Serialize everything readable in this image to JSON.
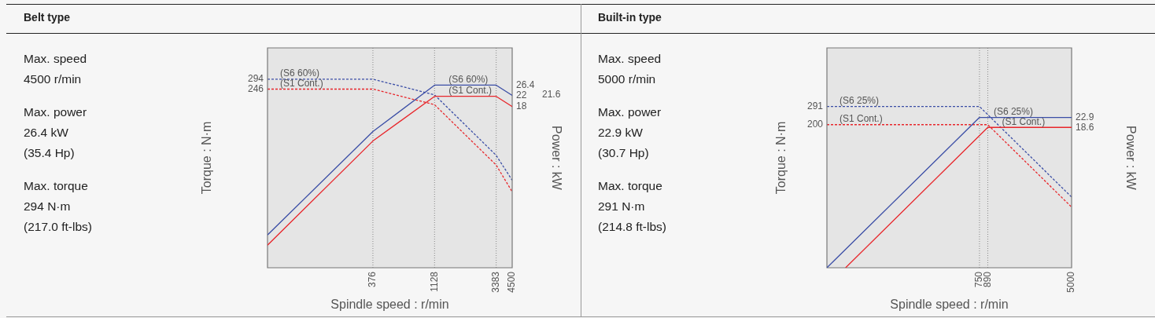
{
  "chart_data": [
    {
      "type": "other",
      "title": "Belt type",
      "annotations": [
        "Max. speed\n4500 r/min",
        "Max. power\n26.4 kW\n(35.4 Hp)",
        "Max. torque\n294 N·m\n(217.0 ft-lbs)"
      ]
    },
    {
      "type": "line",
      "xlabel": "Spindle speed : r/min",
      "ylabel": "Torque : N·m",
      "log": "xy",
      "marker": "none",
      "xlim": [
        57.5,
        4500
      ],
      "xticks": [
        376,
        1128,
        3383,
        4500
      ],
      "ylim": [
        10,
        515
      ],
      "yticks": [
        294,
        246
      ],
      "ref_lines": [
        {
          "axis": "x",
          "value": 376,
          "color": "#888888",
          "line_style": "dotted"
        },
        {
          "axis": "x",
          "value": 1128,
          "color": "#888888",
          "line_style": "dotted"
        },
        {
          "axis": "x",
          "value": 3383,
          "color": "#888888",
          "line_style": "dotted"
        }
      ],
      "series": [
        {
          "name": "(S6 60%)",
          "color": "#3b4ea6",
          "line_style": "dashed",
          "x": [
            57.5,
            376,
            1128,
            3383,
            4500
          ],
          "values": [
            294,
            294,
            222,
            75,
            48
          ]
        },
        {
          "name": "(S1 Cont.)",
          "color": "#e8262b",
          "line_style": "dashed",
          "x": [
            57.5,
            376,
            1128,
            3383,
            4500
          ],
          "values": [
            246,
            246,
            186,
            63,
            39
          ]
        }
      ]
    },
    {
      "type": "line",
      "ylabel": "Power : kW",
      "log": "xy",
      "marker": "none",
      "tick_labels": "y",
      "xlim": [
        57.5,
        4500
      ],
      "ylim": [
        1,
        51.5
      ],
      "yticks": [
        26.4,
        22,
        18
      ],
      "annotations": [
        "21.6"
      ],
      "series": [
        {
          "name": "(S6 60%)",
          "color": "#3b4ea6",
          "line_style": "solid",
          "x": [
            57.5,
            376,
            1128,
            3383,
            4500
          ],
          "values": [
            1.8,
            11.5,
            26.4,
            26.4,
            22
          ]
        },
        {
          "name": "(S1 Cont.)",
          "color": "#e8262b",
          "line_style": "solid",
          "x": [
            57.5,
            376,
            1128,
            3383,
            4500
          ],
          "values": [
            1.5,
            9.7,
            21.6,
            21.6,
            18
          ]
        }
      ]
    },
    {
      "type": "other",
      "title": "Built-in type",
      "annotations": [
        "Max. speed\n5000 r/min",
        "Max. power\n22.9 kW\n(30.7 Hp)",
        "Max. torque\n291 N·m\n(214.8 ft-lbs)"
      ]
    },
    {
      "type": "line",
      "xlabel": "Spindle speed : r/min",
      "ylabel": "Torque : N·m",
      "log": "xy",
      "marker": "none",
      "xlim": [
        32.4,
        5000
      ],
      "xticks": [
        750,
        890,
        5000
      ],
      "ylim": [
        10.4,
        976
      ],
      "yticks": [
        291,
        200
      ],
      "ref_lines": [
        {
          "axis": "x",
          "value": 750,
          "color": "#888888",
          "line_style": "dotted"
        },
        {
          "axis": "x",
          "value": 890,
          "color": "#888888",
          "line_style": "dotted"
        }
      ],
      "series": [
        {
          "name": "(S6 25%)",
          "color": "#3b4ea6",
          "line_style": "dashed",
          "x": [
            32.4,
            750,
            5000
          ],
          "values": [
            291,
            291,
            44.8
          ]
        },
        {
          "name": "(S1 Cont.)",
          "color": "#e8262b",
          "line_style": "dashed",
          "x": [
            32.4,
            890,
            5000
          ],
          "values": [
            200,
            200,
            36.4
          ]
        }
      ]
    },
    {
      "type": "line",
      "ylabel": "Power : kW",
      "log": "xy",
      "marker": "none",
      "tick_labels": "y",
      "xlim": [
        32.4,
        5000
      ],
      "ylim": [
        1,
        97.4
      ],
      "yticks": [
        22.9,
        18.6
      ],
      "series": [
        {
          "name": "(S6 25%)",
          "color": "#3b4ea6",
          "line_style": "solid",
          "x": [
            32.4,
            750,
            5000
          ],
          "values": [
            1,
            22.9,
            22.9
          ]
        },
        {
          "name": "(S1 Cont.)",
          "color": "#e8262b",
          "line_style": "solid",
          "x": [
            47.6,
            890,
            5000
          ],
          "values": [
            1,
            18.6,
            18.6
          ]
        }
      ]
    }
  ]
}
